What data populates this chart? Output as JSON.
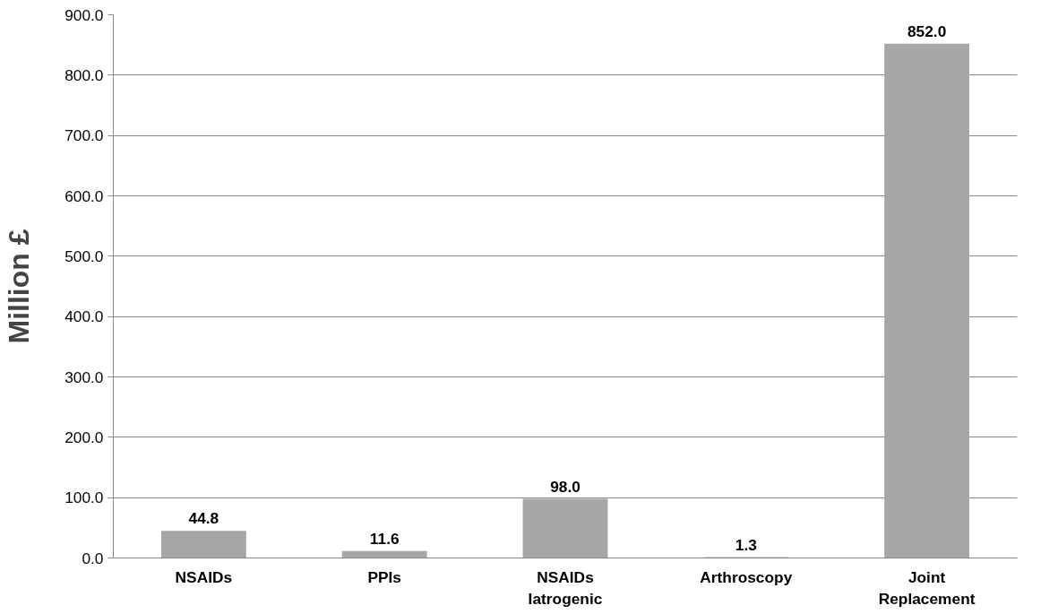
{
  "chart_data": {
    "type": "bar",
    "ylabel": "Million £",
    "categories": [
      "NSAIDs",
      "PPIs",
      "NSAIDs\nIatrogenic",
      "Arthroscopy",
      "Joint\nReplacement"
    ],
    "values": [
      44.8,
      11.6,
      98.0,
      1.3,
      852.0
    ],
    "value_labels": [
      "44.8",
      "11.6",
      "98.0",
      "1.3",
      "852.0"
    ],
    "color": "#a6a6a6",
    "ylim": [
      0,
      900
    ],
    "yticks": [
      {
        "value": 0,
        "label": "0.0"
      },
      {
        "value": 100,
        "label": "100.0"
      },
      {
        "value": 200,
        "label": "200.0"
      },
      {
        "value": 300,
        "label": "300.0"
      },
      {
        "value": 400,
        "label": "400.0"
      },
      {
        "value": 500,
        "label": "500.0"
      },
      {
        "value": 600,
        "label": "600.0"
      },
      {
        "value": 700,
        "label": "700.0"
      },
      {
        "value": 800,
        "label": "800.0"
      },
      {
        "value": 900,
        "label": "900.0"
      }
    ],
    "grid": "y"
  }
}
